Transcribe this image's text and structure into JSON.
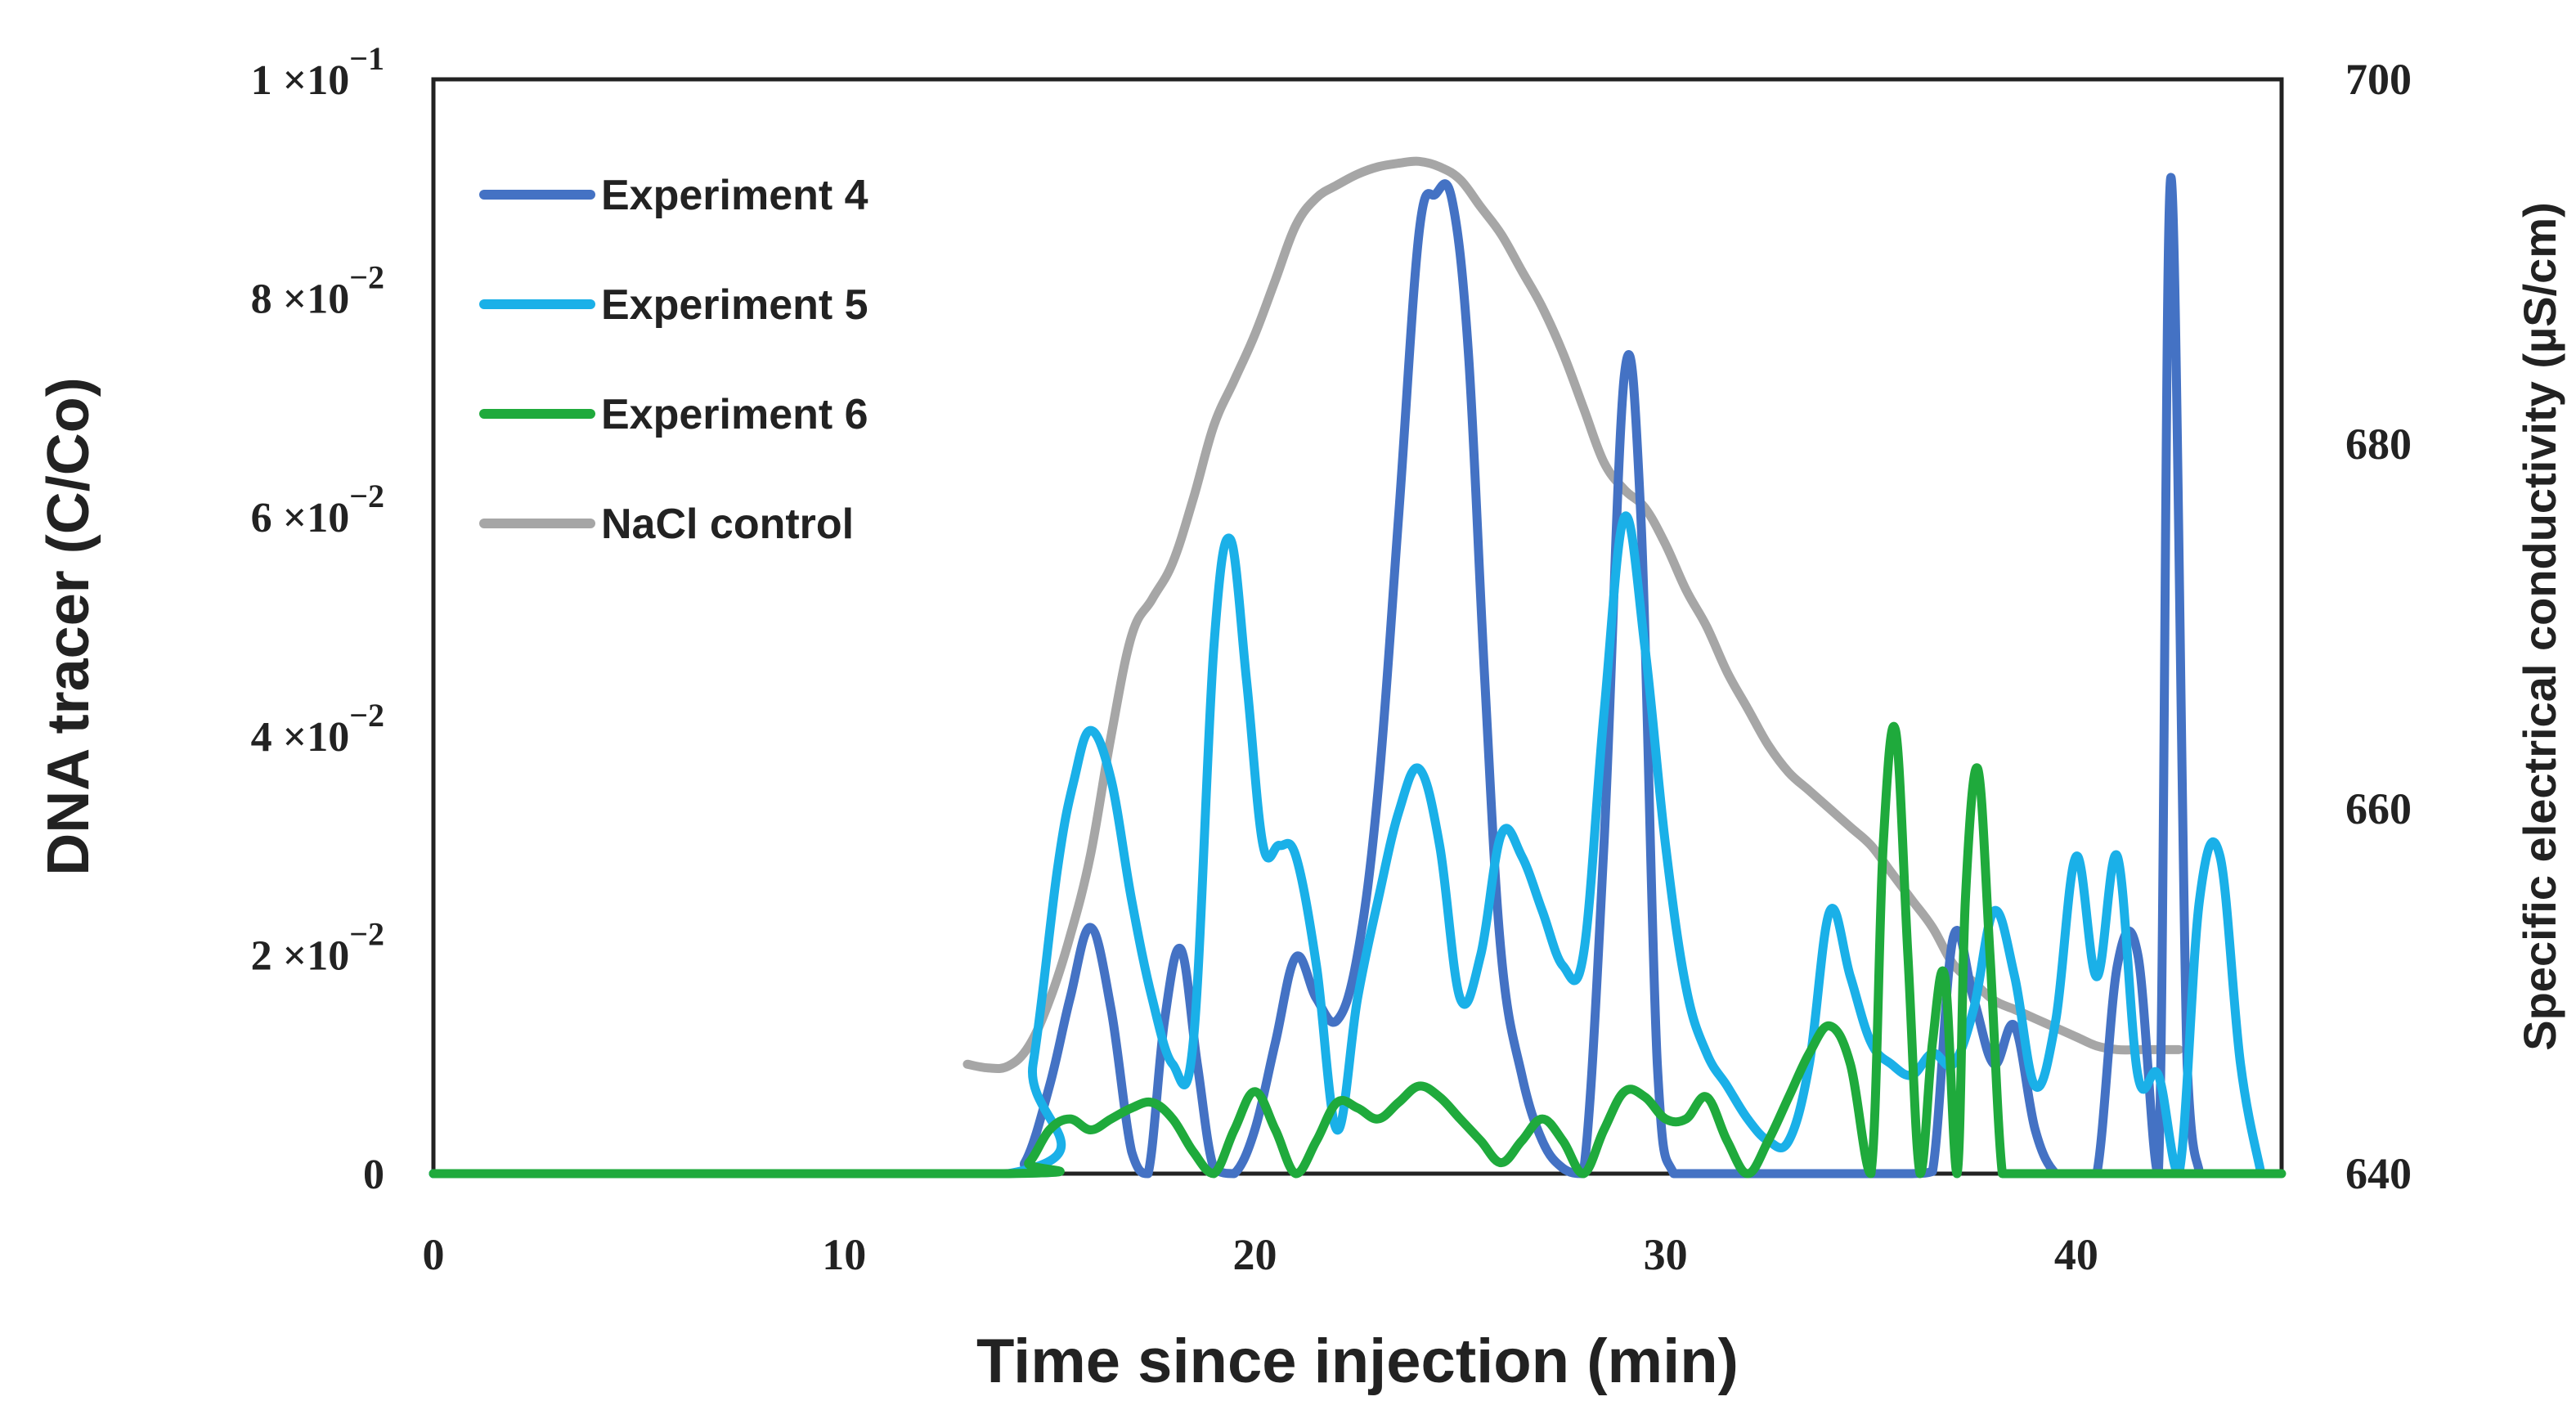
{
  "chart_data": {
    "type": "line",
    "xlabel": "Time since injection (min)",
    "ylabel": "DNA tracer (C/Co)",
    "y2label": "Specific electrical conductivity (µS/cm)",
    "xlim": [
      0,
      45
    ],
    "ylim": [
      0,
      0.1
    ],
    "y2lim": [
      640,
      700
    ],
    "x_ticks": [
      "0",
      "10",
      "20",
      "30",
      "40"
    ],
    "x_tick_values": [
      0,
      10,
      20,
      30,
      40
    ],
    "y_ticks": [
      {
        "value": 0,
        "mant": "0",
        "exp": ""
      },
      {
        "value": 0.02,
        "mant": "2 ×10",
        "exp": "−2"
      },
      {
        "value": 0.04,
        "mant": "4 ×10",
        "exp": "−2"
      },
      {
        "value": 0.06,
        "mant": "6 ×10",
        "exp": "−2"
      },
      {
        "value": 0.08,
        "mant": "8 ×10",
        "exp": "−2"
      },
      {
        "value": 0.1,
        "mant": "1 ×10",
        "exp": "−1"
      }
    ],
    "y2_ticks": [
      "640",
      "660",
      "680",
      "700"
    ],
    "y2_tick_values": [
      640,
      660,
      680,
      700
    ],
    "grid": false,
    "legend": "top-left",
    "series": [
      {
        "name": "Experiment 4",
        "color": "#4472C4",
        "axis": "left",
        "x": [
          0,
          13.8,
          14.4,
          15.0,
          15.5,
          16.0,
          16.5,
          17.0,
          17.4,
          17.8,
          18.2,
          18.6,
          19.0,
          19.5,
          20.0,
          20.5,
          21.0,
          21.5,
          22.0,
          22.5,
          23.0,
          23.5,
          24.0,
          24.4,
          24.8,
          25.2,
          25.6,
          26.0,
          26.5,
          27.0,
          27.5,
          28.0,
          28.5,
          29.0,
          29.4,
          29.8,
          30.2,
          31.0,
          32.0,
          33.0,
          34.0,
          35.0,
          36.0,
          36.5,
          37.0,
          37.5,
          38.0,
          38.5,
          39.0,
          39.5,
          40.0,
          40.5,
          41.0,
          41.5,
          42.0,
          42.3,
          42.7,
          43.0
        ],
        "values": [
          0,
          0,
          0.001,
          0.008,
          0.016,
          0.0225,
          0.015,
          0.002,
          0.0,
          0.014,
          0.0205,
          0.01,
          0.0005,
          0.0,
          0.004,
          0.012,
          0.0198,
          0.016,
          0.014,
          0.02,
          0.035,
          0.06,
          0.086,
          0.0895,
          0.089,
          0.075,
          0.045,
          0.02,
          0.009,
          0.003,
          0.0005,
          0.0,
          0.03,
          0.073,
          0.06,
          0.01,
          0.0,
          0.0,
          0.0,
          0.0,
          0.0,
          0.0,
          0.0,
          0.0002,
          0.0215,
          0.016,
          0.01,
          0.0135,
          0.004,
          0.0,
          0.0,
          0.0,
          0.019,
          0.02,
          0.0,
          0.091,
          0.01,
          0.0
        ]
      },
      {
        "name": "Experiment 5",
        "color": "#1AB0E8",
        "axis": "left",
        "x": [
          0,
          14.0,
          14.6,
          15.2,
          15.6,
          16.0,
          16.5,
          17.0,
          17.5,
          18.0,
          18.5,
          19.0,
          19.4,
          19.8,
          20.2,
          20.6,
          21.0,
          21.5,
          22.0,
          22.5,
          23.0,
          23.5,
          24.0,
          24.5,
          25.0,
          25.5,
          26.0,
          26.5,
          27.0,
          27.5,
          28.0,
          28.5,
          29.0,
          29.5,
          30.0,
          30.5,
          31.0,
          31.5,
          32.0,
          32.5,
          33.0,
          33.5,
          34.0,
          34.5,
          35.0,
          35.5,
          36.0,
          36.5,
          37.0,
          37.5,
          38.0,
          38.5,
          39.0,
          39.5,
          40.0,
          40.5,
          41.0,
          41.5,
          42.0,
          42.5,
          43.0,
          43.5,
          44.0,
          44.5
        ],
        "values": [
          0,
          0,
          0.01,
          0.028,
          0.036,
          0.0405,
          0.036,
          0.025,
          0.016,
          0.01,
          0.012,
          0.048,
          0.058,
          0.045,
          0.03,
          0.03,
          0.029,
          0.019,
          0.004,
          0.016,
          0.025,
          0.033,
          0.037,
          0.03,
          0.016,
          0.02,
          0.031,
          0.029,
          0.024,
          0.019,
          0.02,
          0.042,
          0.06,
          0.048,
          0.03,
          0.017,
          0.011,
          0.008,
          0.005,
          0.003,
          0.003,
          0.01,
          0.024,
          0.018,
          0.012,
          0.01,
          0.009,
          0.011,
          0.01,
          0.015,
          0.024,
          0.018,
          0.008,
          0.014,
          0.029,
          0.018,
          0.029,
          0.009,
          0.009,
          0.0,
          0.025,
          0.029,
          0.01,
          0.0
        ]
      },
      {
        "name": "Experiment 6",
        "color": "#1FAA3C",
        "axis": "left",
        "x": [
          0,
          14.0,
          14.5,
          15.0,
          15.5,
          16.0,
          16.5,
          17.0,
          17.5,
          18.0,
          18.5,
          19.0,
          19.5,
          20.0,
          20.5,
          21.0,
          21.5,
          22.0,
          22.5,
          23.0,
          23.5,
          24.0,
          24.5,
          25.0,
          25.5,
          26.0,
          26.5,
          27.0,
          27.5,
          28.0,
          28.5,
          29.0,
          29.5,
          30.0,
          30.5,
          31.0,
          31.5,
          32.0,
          32.5,
          33.0,
          33.5,
          34.0,
          34.5,
          35.0,
          35.3,
          35.6,
          35.9,
          36.2,
          36.5,
          36.8,
          37.1,
          37.3,
          37.6,
          37.9,
          38.2,
          38.5,
          39.0,
          45.0
        ],
        "values": [
          0,
          0,
          0.001,
          0.004,
          0.005,
          0.004,
          0.005,
          0.006,
          0.0065,
          0.005,
          0.002,
          0.0,
          0.004,
          0.0075,
          0.004,
          0.0,
          0.003,
          0.0065,
          0.006,
          0.005,
          0.0065,
          0.008,
          0.007,
          0.005,
          0.003,
          0.001,
          0.003,
          0.005,
          0.003,
          0.0,
          0.004,
          0.0075,
          0.007,
          0.005,
          0.005,
          0.007,
          0.003,
          0.0,
          0.003,
          0.007,
          0.011,
          0.0135,
          0.01,
          0.0,
          0.03,
          0.0405,
          0.02,
          0.0,
          0.012,
          0.018,
          0.0,
          0.025,
          0.037,
          0.02,
          0.0,
          0.0,
          0.0,
          0.0
        ]
      },
      {
        "name": "NaCl control",
        "color": "#A6A6A6",
        "axis": "right",
        "x": [
          13.0,
          13.5,
          14.0,
          14.5,
          15.0,
          15.5,
          16.0,
          16.5,
          17.0,
          17.5,
          18.0,
          18.5,
          19.0,
          19.5,
          20.0,
          20.5,
          21.0,
          21.5,
          22.0,
          22.5,
          23.0,
          23.5,
          24.0,
          24.5,
          25.0,
          25.5,
          26.0,
          26.5,
          27.0,
          27.5,
          28.0,
          28.5,
          29.0,
          29.5,
          30.0,
          30.5,
          31.0,
          31.5,
          32.0,
          32.5,
          33.0,
          33.5,
          34.0,
          34.5,
          35.0,
          35.5,
          36.0,
          36.5,
          37.0,
          37.5,
          38.0,
          38.5,
          39.0,
          39.5,
          40.0,
          40.5,
          41.0,
          41.5,
          42.0,
          42.5
        ],
        "values": [
          646.0,
          645.8,
          645.9,
          647.0,
          649.5,
          653.0,
          657.5,
          664.0,
          669.5,
          671.5,
          673.5,
          677.0,
          681.0,
          683.5,
          686.0,
          689.0,
          692.0,
          693.5,
          694.2,
          694.8,
          695.2,
          695.4,
          695.5,
          695.2,
          694.5,
          693.0,
          691.5,
          689.5,
          687.5,
          685.0,
          682.0,
          679.0,
          677.5,
          676.5,
          674.5,
          672.0,
          670.0,
          667.5,
          665.5,
          663.5,
          662.0,
          661.0,
          660.0,
          659.0,
          658.0,
          656.5,
          655.0,
          653.5,
          651.5,
          650.5,
          649.5,
          649.0,
          648.5,
          648.0,
          647.5,
          647.0,
          646.8,
          646.8,
          646.8,
          646.8
        ]
      }
    ]
  }
}
